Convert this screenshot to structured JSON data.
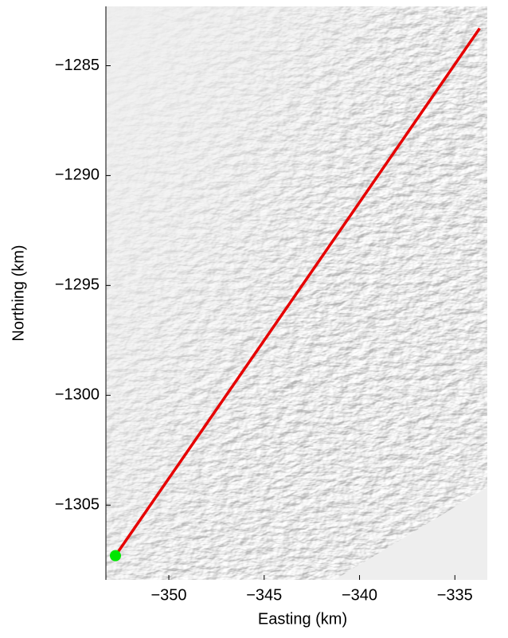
{
  "chart_data": {
    "type": "line",
    "x_label": "Easting (km)",
    "y_label": "Northing (km)",
    "xlim": [
      -353.3,
      -333.3
    ],
    "ylim": [
      -1308.4,
      -1282.3
    ],
    "xticks": [
      {
        "value": -350,
        "label": "−350"
      },
      {
        "value": -345,
        "label": "−345"
      },
      {
        "value": -340,
        "label": "−340"
      },
      {
        "value": -335,
        "label": "−335"
      }
    ],
    "yticks": [
      {
        "value": -1285,
        "label": "−1285"
      },
      {
        "value": -1290,
        "label": "−1290"
      },
      {
        "value": -1295,
        "label": "−1295"
      },
      {
        "value": -1300,
        "label": "−1300"
      },
      {
        "value": -1305,
        "label": "−1305"
      }
    ],
    "x": [
      -352.8,
      -333.7
    ],
    "series": [
      {
        "color": "#e60000",
        "values": [
          -1307.3,
          -1283.3
        ]
      }
    ],
    "start_point": {
      "x": -352.8,
      "y": -1307.3,
      "color": "#00e600"
    }
  }
}
